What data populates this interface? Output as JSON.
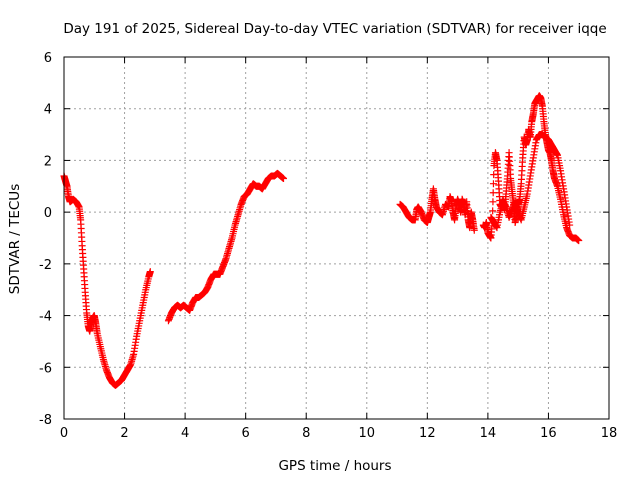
{
  "chart_data": {
    "type": "scatter",
    "title": "Day 191 of 2025, Sidereal Day-to-day VTEC variation (SDTVAR) for receiver iqqe",
    "xlabel": "GPS time / hours",
    "ylabel": "SDTVAR / TECUs",
    "xlim": [
      0,
      18
    ],
    "ylim": [
      -8,
      6
    ],
    "xticks": [
      "0",
      "2",
      "4",
      "6",
      "8",
      "10",
      "12",
      "14",
      "16",
      "18"
    ],
    "yticks": [
      "-8",
      "-6",
      "-4",
      "-2",
      "0",
      "2",
      "4",
      "6"
    ],
    "grid": true,
    "marker": "+",
    "series_color": "#ff0000",
    "series": [
      {
        "name": "SDTVAR",
        "segments": [
          [
            [
              0.0,
              1.4
            ],
            [
              0.05,
              1.2
            ],
            [
              0.1,
              1.0
            ],
            [
              0.15,
              0.6
            ],
            [
              0.2,
              0.4
            ],
            [
              0.3,
              0.5
            ],
            [
              0.4,
              0.4
            ],
            [
              0.5,
              0.2
            ],
            [
              0.55,
              -0.3
            ],
            [
              0.6,
              -1.3
            ],
            [
              0.65,
              -2.2
            ],
            [
              0.7,
              -3.1
            ],
            [
              0.75,
              -3.9
            ],
            [
              0.8,
              -4.4
            ],
            [
              0.85,
              -4.6
            ],
            [
              0.9,
              -4.3
            ],
            [
              0.95,
              -4.1
            ],
            [
              1.0,
              -4.0
            ],
            [
              1.05,
              -4.3
            ],
            [
              1.1,
              -4.7
            ],
            [
              1.2,
              -5.2
            ],
            [
              1.3,
              -5.7
            ],
            [
              1.4,
              -6.1
            ],
            [
              1.5,
              -6.4
            ],
            [
              1.6,
              -6.6
            ],
            [
              1.7,
              -6.7
            ],
            [
              1.8,
              -6.6
            ],
            [
              1.9,
              -6.5
            ],
            [
              2.0,
              -6.3
            ],
            [
              2.1,
              -6.1
            ],
            [
              2.2,
              -5.9
            ],
            [
              2.3,
              -5.5
            ],
            [
              2.4,
              -4.8
            ],
            [
              2.5,
              -4.2
            ],
            [
              2.6,
              -3.6
            ],
            [
              2.7,
              -3.0
            ],
            [
              2.8,
              -2.5
            ],
            [
              2.85,
              -2.3
            ]
          ],
          [
            [
              3.45,
              -4.2
            ],
            [
              3.55,
              -3.9
            ],
            [
              3.65,
              -3.7
            ],
            [
              3.75,
              -3.6
            ],
            [
              3.85,
              -3.7
            ],
            [
              3.95,
              -3.6
            ],
            [
              4.05,
              -3.7
            ],
            [
              4.15,
              -3.8
            ],
            [
              4.25,
              -3.5
            ],
            [
              4.35,
              -3.3
            ],
            [
              4.45,
              -3.3
            ],
            [
              4.55,
              -3.2
            ],
            [
              4.65,
              -3.1
            ],
            [
              4.75,
              -2.9
            ],
            [
              4.85,
              -2.6
            ],
            [
              4.95,
              -2.4
            ],
            [
              5.05,
              -2.4
            ],
            [
              5.15,
              -2.4
            ],
            [
              5.25,
              -2.1
            ],
            [
              5.35,
              -1.8
            ],
            [
              5.45,
              -1.4
            ],
            [
              5.55,
              -1.0
            ],
            [
              5.65,
              -0.5
            ],
            [
              5.75,
              -0.1
            ],
            [
              5.85,
              0.3
            ],
            [
              5.95,
              0.6
            ],
            [
              6.05,
              0.7
            ],
            [
              6.15,
              0.9
            ],
            [
              6.25,
              1.1
            ],
            [
              6.35,
              1.0
            ],
            [
              6.45,
              1.0
            ],
            [
              6.55,
              0.9
            ],
            [
              6.65,
              1.1
            ],
            [
              6.75,
              1.3
            ],
            [
              6.85,
              1.4
            ],
            [
              6.95,
              1.4
            ],
            [
              7.05,
              1.5
            ],
            [
              7.15,
              1.4
            ],
            [
              7.25,
              1.3
            ]
          ],
          [
            [
              11.1,
              0.3
            ],
            [
              11.2,
              0.2
            ],
            [
              11.3,
              0.0
            ],
            [
              11.4,
              -0.2
            ],
            [
              11.5,
              -0.3
            ],
            [
              11.6,
              -0.3
            ],
            [
              11.65,
              0.1
            ],
            [
              11.7,
              0.2
            ],
            [
              11.8,
              0.0
            ],
            [
              11.9,
              -0.3
            ],
            [
              12.0,
              -0.4
            ],
            [
              12.05,
              -0.2
            ],
            [
              12.1,
              0.0
            ],
            [
              12.15,
              0.5
            ],
            [
              12.2,
              0.9
            ],
            [
              12.25,
              0.5
            ],
            [
              12.3,
              0.2
            ],
            [
              12.4,
              0.0
            ],
            [
              12.5,
              -0.1
            ],
            [
              12.6,
              0.3
            ],
            [
              12.7,
              0.2
            ],
            [
              12.75,
              0.6
            ],
            [
              12.8,
              0.4
            ],
            [
              12.85,
              0.0
            ],
            [
              12.9,
              -0.3
            ],
            [
              12.95,
              0.2
            ],
            [
              13.0,
              0.5
            ],
            [
              13.05,
              0.3
            ],
            [
              13.1,
              0.0
            ],
            [
              13.15,
              0.5
            ],
            [
              13.2,
              0.3
            ],
            [
              13.25,
              -0.1
            ],
            [
              13.3,
              0.4
            ],
            [
              13.35,
              -0.3
            ],
            [
              13.4,
              -0.6
            ],
            [
              13.45,
              0.0
            ],
            [
              13.5,
              -0.3
            ],
            [
              13.55,
              -0.7
            ]
          ],
          [
            [
              13.85,
              -0.5
            ],
            [
              13.9,
              -0.6
            ],
            [
              13.95,
              -0.4
            ],
            [
              14.0,
              -0.8
            ],
            [
              14.05,
              -0.9
            ],
            [
              14.1,
              -1.0
            ],
            [
              14.15,
              -0.3
            ],
            [
              14.2,
              1.8
            ],
            [
              14.25,
              2.3
            ],
            [
              14.3,
              2.0
            ],
            [
              14.35,
              1.2
            ],
            [
              14.4,
              0.3
            ],
            [
              14.45,
              0.2
            ],
            [
              14.5,
              0.5
            ],
            [
              14.55,
              0.1
            ],
            [
              14.6,
              0.7
            ],
            [
              14.65,
              1.4
            ],
            [
              14.7,
              2.3
            ],
            [
              14.75,
              1.3
            ],
            [
              14.8,
              0.8
            ],
            [
              14.85,
              0.3
            ],
            [
              14.9,
              -0.4
            ],
            [
              14.95,
              -0.1
            ],
            [
              15.0,
              0.3
            ],
            [
              15.05,
              0.5
            ],
            [
              15.1,
              1.1
            ],
            [
              15.15,
              2.1
            ],
            [
              15.2,
              2.9
            ],
            [
              15.25,
              2.6
            ],
            [
              15.3,
              2.8
            ],
            [
              15.35,
              3.2
            ],
            [
              15.4,
              2.9
            ],
            [
              15.45,
              3.5
            ],
            [
              15.5,
              3.8
            ],
            [
              15.55,
              4.2
            ],
            [
              15.6,
              4.3
            ],
            [
              15.65,
              4.4
            ],
            [
              15.7,
              4.5
            ],
            [
              15.75,
              4.4
            ],
            [
              15.8,
              4.1
            ],
            [
              15.85,
              3.5
            ],
            [
              15.9,
              3.0
            ],
            [
              15.95,
              2.7
            ],
            [
              16.0,
              2.4
            ],
            [
              16.05,
              2.3
            ],
            [
              16.1,
              2.0
            ],
            [
              16.15,
              1.6
            ],
            [
              16.2,
              1.3
            ],
            [
              16.3,
              1.0
            ],
            [
              16.4,
              0.5
            ],
            [
              16.5,
              -0.1
            ],
            [
              16.6,
              -0.6
            ],
            [
              16.7,
              -0.9
            ],
            [
              16.8,
              -1.0
            ],
            [
              16.9,
              -1.0
            ],
            [
              17.0,
              -1.1
            ]
          ],
          [
            [
              14.1,
              -0.2
            ],
            [
              14.2,
              -0.4
            ],
            [
              14.3,
              -0.6
            ],
            [
              14.4,
              0.0
            ],
            [
              14.5,
              0.4
            ],
            [
              14.6,
              0.2
            ],
            [
              14.7,
              -0.2
            ],
            [
              14.8,
              0.1
            ],
            [
              14.9,
              0.4
            ],
            [
              15.0,
              0.0
            ],
            [
              15.1,
              -0.3
            ],
            [
              15.2,
              0.2
            ],
            [
              15.3,
              0.7
            ],
            [
              15.4,
              1.4
            ],
            [
              15.5,
              2.1
            ],
            [
              15.6,
              2.8
            ],
            [
              15.7,
              3.0
            ],
            [
              15.8,
              3.0
            ],
            [
              15.9,
              2.9
            ],
            [
              16.0,
              2.8
            ],
            [
              16.1,
              2.6
            ],
            [
              16.2,
              2.4
            ],
            [
              16.3,
              2.2
            ],
            [
              16.4,
              1.6
            ],
            [
              16.5,
              0.9
            ],
            [
              16.6,
              0.2
            ],
            [
              16.7,
              -0.5
            ]
          ]
        ]
      }
    ]
  }
}
